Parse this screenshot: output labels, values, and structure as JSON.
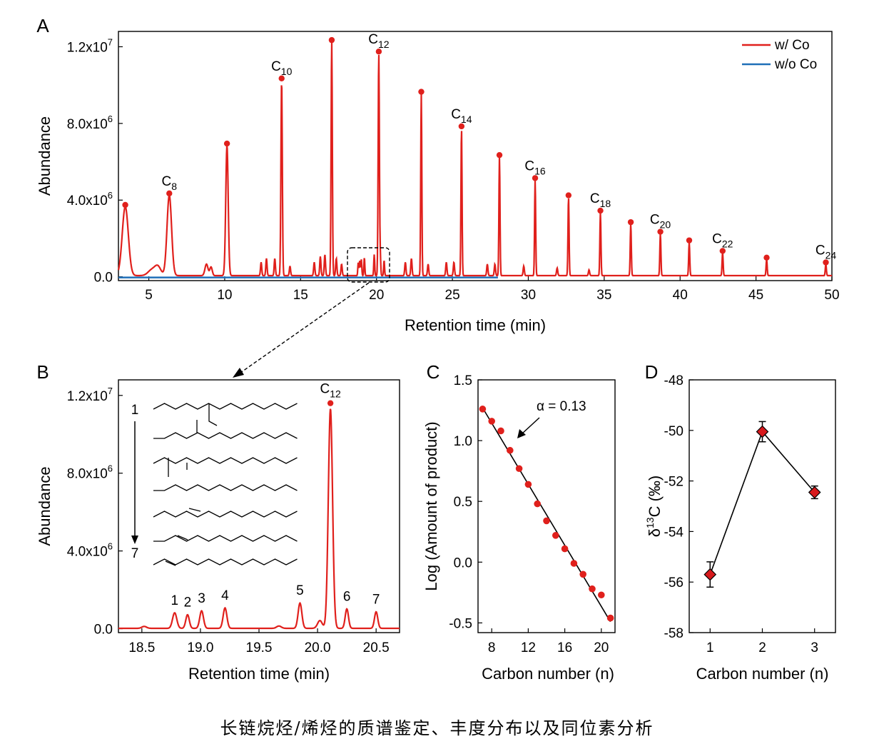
{
  "caption": "长链烷烃/烯烃的质谱鉴定、丰度分布以及同位素分析",
  "colors": {
    "with_co": "#e0201c",
    "without_co": "#1f6fb8",
    "marker_d": "#d7191c",
    "fit": "#000000"
  },
  "chart_data": [
    {
      "panel": "A",
      "type": "line",
      "xlabel": "Retention time (min)",
      "ylabel": "Abundance",
      "xlim": [
        3,
        50
      ],
      "ylim": [
        -200000,
        12800000
      ],
      "xticks": [
        5,
        10,
        15,
        20,
        25,
        30,
        35,
        40,
        45,
        50
      ],
      "yticks": [
        {
          "v": 0,
          "label": "0.0"
        },
        {
          "v": 4000000,
          "label": "4.0x10",
          "exp": "6"
        },
        {
          "v": 8000000,
          "label": "8.0x10",
          "exp": "6"
        },
        {
          "v": 12000000,
          "label": "1.2x10",
          "exp": "7"
        }
      ],
      "legend": {
        "position": "top-right",
        "entries": [
          "w/ Co",
          "w/o Co"
        ]
      },
      "series": [
        {
          "name": "w/ Co",
          "peaks": [
            {
              "x": 3.45,
              "y": 3600000,
              "w": 0.2
            },
            {
              "x": 6.35,
              "y": 4200000,
              "w": 0.15
            },
            {
              "x": 10.15,
              "y": 6800000,
              "w": 0.08
            },
            {
              "x": 13.75,
              "y": 10200000,
              "w": 0.045
            },
            {
              "x": 17.05,
              "y": 12200000,
              "w": 0.04
            },
            {
              "x": 20.15,
              "y": 11600000,
              "w": 0.04
            },
            {
              "x": 22.95,
              "y": 9500000,
              "w": 0.035
            },
            {
              "x": 25.6,
              "y": 7700000,
              "w": 0.035
            },
            {
              "x": 28.1,
              "y": 6200000,
              "w": 0.035
            },
            {
              "x": 30.45,
              "y": 5000000,
              "w": 0.035
            },
            {
              "x": 32.65,
              "y": 4100000,
              "w": 0.035
            },
            {
              "x": 34.75,
              "y": 3300000,
              "w": 0.035
            },
            {
              "x": 36.75,
              "y": 2700000,
              "w": 0.035
            },
            {
              "x": 38.7,
              "y": 2200000,
              "w": 0.035
            },
            {
              "x": 40.6,
              "y": 1750000,
              "w": 0.035
            },
            {
              "x": 42.8,
              "y": 1200000,
              "w": 0.035
            },
            {
              "x": 45.7,
              "y": 850000,
              "w": 0.035
            },
            {
              "x": 49.6,
              "y": 600000,
              "w": 0.035
            }
          ],
          "minor_peaks": [
            {
              "x": 5.2,
              "y": 300000,
              "w": 0.25
            },
            {
              "x": 5.6,
              "y": 450000,
              "w": 0.2
            },
            {
              "x": 8.8,
              "y": 600000,
              "w": 0.1
            },
            {
              "x": 9.1,
              "y": 450000,
              "w": 0.08
            },
            {
              "x": 12.4,
              "y": 700000,
              "w": 0.04
            },
            {
              "x": 12.75,
              "y": 900000,
              "w": 0.04
            },
            {
              "x": 13.3,
              "y": 900000,
              "w": 0.04
            },
            {
              "x": 14.3,
              "y": 500000,
              "w": 0.04
            },
            {
              "x": 15.9,
              "y": 700000,
              "w": 0.04
            },
            {
              "x": 16.3,
              "y": 1000000,
              "w": 0.04
            },
            {
              "x": 16.6,
              "y": 1100000,
              "w": 0.04
            },
            {
              "x": 17.35,
              "y": 900000,
              "w": 0.04
            },
            {
              "x": 17.7,
              "y": 600000,
              "w": 0.04
            },
            {
              "x": 18.8,
              "y": 700000,
              "w": 0.03
            },
            {
              "x": 18.9,
              "y": 800000,
              "w": 0.03
            },
            {
              "x": 19.0,
              "y": 850000,
              "w": 0.03
            },
            {
              "x": 19.2,
              "y": 950000,
              "w": 0.03
            },
            {
              "x": 19.85,
              "y": 1100000,
              "w": 0.03
            },
            {
              "x": 20.25,
              "y": 950000,
              "w": 0.03
            },
            {
              "x": 20.5,
              "y": 800000,
              "w": 0.03
            },
            {
              "x": 21.9,
              "y": 700000,
              "w": 0.04
            },
            {
              "x": 22.3,
              "y": 900000,
              "w": 0.04
            },
            {
              "x": 23.4,
              "y": 600000,
              "w": 0.04
            },
            {
              "x": 24.6,
              "y": 700000,
              "w": 0.04
            },
            {
              "x": 25.1,
              "y": 700000,
              "w": 0.04
            },
            {
              "x": 27.3,
              "y": 600000,
              "w": 0.04
            },
            {
              "x": 27.8,
              "y": 600000,
              "w": 0.04
            },
            {
              "x": 29.7,
              "y": 500000,
              "w": 0.04
            },
            {
              "x": 31.9,
              "y": 400000,
              "w": 0.04
            },
            {
              "x": 34.0,
              "y": 300000,
              "w": 0.04
            }
          ]
        },
        {
          "name": "w/o Co",
          "baseline": 0
        }
      ],
      "peak_labels": [
        {
          "x": 6.35,
          "y": 4200000,
          "base": "C",
          "sub": "8"
        },
        {
          "x": 13.75,
          "y": 10200000,
          "base": "C",
          "sub": "10"
        },
        {
          "x": 20.15,
          "y": 11600000,
          "base": "C",
          "sub": "12"
        },
        {
          "x": 25.6,
          "y": 7700000,
          "base": "C",
          "sub": "14"
        },
        {
          "x": 30.45,
          "y": 5000000,
          "base": "C",
          "sub": "16"
        },
        {
          "x": 34.75,
          "y": 3300000,
          "base": "C",
          "sub": "18"
        },
        {
          "x": 38.7,
          "y": 2200000,
          "base": "C",
          "sub": "20"
        },
        {
          "x": 42.8,
          "y": 1200000,
          "base": "C",
          "sub": "22"
        },
        {
          "x": 49.6,
          "y": 600000,
          "base": "C",
          "sub": "24"
        }
      ]
    },
    {
      "panel": "B",
      "type": "line",
      "xlabel": "Retention time (min)",
      "ylabel": "Abundance",
      "xlim": [
        18.3,
        20.7
      ],
      "ylim": [
        -200000,
        12800000
      ],
      "xticks": [
        {
          "v": 18.5,
          "label": "18.5"
        },
        {
          "v": 19.0,
          "label": "19.0"
        },
        {
          "v": 19.5,
          "label": "19.5"
        },
        {
          "v": 20.0,
          "label": "20.0"
        },
        {
          "v": 20.5,
          "label": "20.5"
        }
      ],
      "yticks": [
        {
          "v": 0,
          "label": "0.0"
        },
        {
          "v": 4000000,
          "label": "4.0x10",
          "exp": "6"
        },
        {
          "v": 8000000,
          "label": "8.0x10",
          "exp": "6"
        },
        {
          "v": 12000000,
          "label": "1.2x10",
          "exp": "7"
        }
      ],
      "peaks": [
        {
          "x": 18.78,
          "y": 800000,
          "w": 0.018,
          "label": "1"
        },
        {
          "x": 18.89,
          "y": 700000,
          "w": 0.015,
          "label": "2"
        },
        {
          "x": 19.01,
          "y": 900000,
          "w": 0.016,
          "label": "3"
        },
        {
          "x": 19.21,
          "y": 1050000,
          "w": 0.016,
          "label": "4"
        },
        {
          "x": 19.85,
          "y": 1300000,
          "w": 0.016,
          "label": "5"
        },
        {
          "x": 20.11,
          "y": 11300000,
          "w": 0.018,
          "label": ""
        },
        {
          "x": 20.25,
          "y": 1000000,
          "w": 0.014,
          "label": "6"
        },
        {
          "x": 20.5,
          "y": 850000,
          "w": 0.014,
          "label": "7"
        }
      ],
      "minor_peaks": [
        {
          "x": 18.52,
          "y": 100000,
          "w": 0.02
        },
        {
          "x": 19.67,
          "y": 120000,
          "w": 0.02
        },
        {
          "x": 20.02,
          "y": 400000,
          "w": 0.02
        }
      ],
      "apex_label": {
        "x": 20.11,
        "y": 11600000,
        "base": "C",
        "sub": "12"
      },
      "order_labels": {
        "start": "1",
        "end": "7"
      }
    },
    {
      "panel": "C",
      "type": "scatter",
      "xlabel": "Carbon number (n)",
      "ylabel": "Log (Amount of product)",
      "xlim": [
        6.5,
        21.5
      ],
      "ylim": [
        -0.58,
        1.5
      ],
      "xticks": [
        8,
        12,
        16,
        20
      ],
      "yticks": [
        {
          "v": -0.5,
          "label": "-0.5"
        },
        {
          "v": 0.0,
          "label": "0.0"
        },
        {
          "v": 0.5,
          "label": "0.5"
        },
        {
          "v": 1.0,
          "label": "1.0"
        },
        {
          "v": 1.5,
          "label": "1.5"
        }
      ],
      "x": [
        7,
        8,
        9,
        10,
        11,
        12,
        13,
        14,
        15,
        16,
        17,
        18,
        19,
        20,
        21
      ],
      "y": [
        1.26,
        1.16,
        1.08,
        0.92,
        0.77,
        0.64,
        0.48,
        0.34,
        0.22,
        0.11,
        -0.01,
        -0.1,
        -0.22,
        -0.27,
        -0.46
      ],
      "fit": {
        "x": [
          7,
          21
        ],
        "y": [
          1.27,
          -0.49
        ]
      },
      "annotation": "α = 0.13"
    },
    {
      "panel": "D",
      "type": "scatter",
      "xlabel": "Carbon number (n)",
      "ylabel": "δ13C (‰)",
      "ylabel_parts": {
        "pre": "δ",
        "sup": "13",
        "post": "C (‰)"
      },
      "xlim": [
        0.6,
        3.4
      ],
      "ylim": [
        -58,
        -48
      ],
      "xticks": [
        1,
        2,
        3
      ],
      "yticks": [
        {
          "v": -58,
          "label": "-58"
        },
        {
          "v": -56,
          "label": "-56"
        },
        {
          "v": -54,
          "label": "-54"
        },
        {
          "v": -52,
          "label": "-52"
        },
        {
          "v": -50,
          "label": "-50"
        },
        {
          "v": -48,
          "label": "-48"
        }
      ],
      "x": [
        1,
        2,
        3
      ],
      "y": [
        -55.7,
        -50.05,
        -52.45
      ],
      "err": [
        0.5,
        0.4,
        0.25
      ]
    }
  ]
}
